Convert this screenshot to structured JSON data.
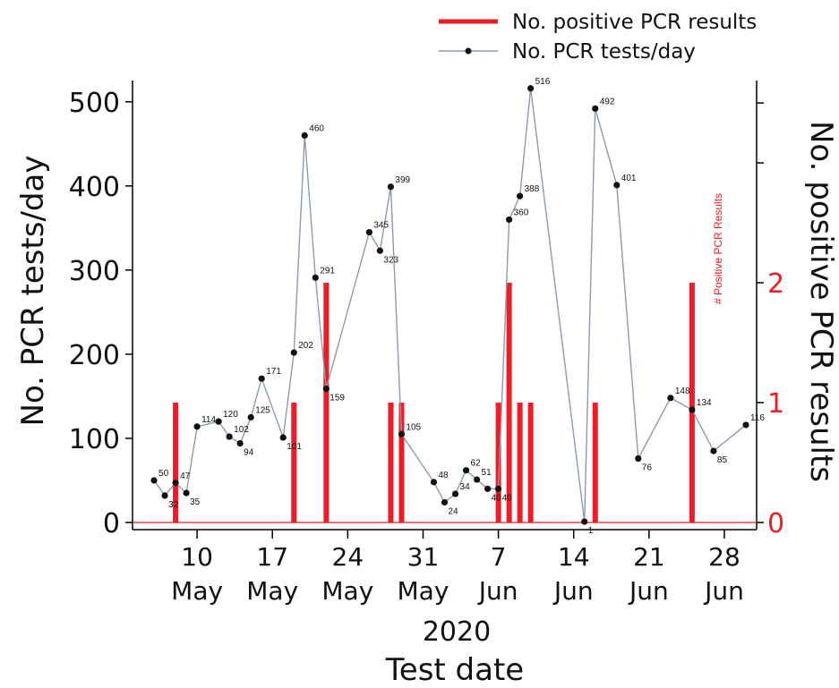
{
  "chart_data": {
    "type": "bar+line",
    "xlabel": "Test date",
    "year_label": "2020",
    "ylabel_left": "No. PCR tests/day",
    "ylabel_right": "No. positive PCR results",
    "right_axis_inner_label": "# Positive PCR Results",
    "legend": {
      "position": "top-right",
      "entries": [
        {
          "label": "No. positive PCR results",
          "style": "bar",
          "color": "#ee1c25"
        },
        {
          "label": "No. PCR tests/day",
          "style": "line-marker",
          "color": "#8c9bad"
        }
      ]
    },
    "x_range": [
      "2020-05-04",
      "2020-07-01"
    ],
    "x_ticks": [
      {
        "date": "2020-05-10",
        "day": "10",
        "month": "May"
      },
      {
        "date": "2020-05-17",
        "day": "17",
        "month": "May"
      },
      {
        "date": "2020-05-24",
        "day": "24",
        "month": "May"
      },
      {
        "date": "2020-05-31",
        "day": "31",
        "month": "May"
      },
      {
        "date": "2020-06-07",
        "day": "7",
        "month": "Jun"
      },
      {
        "date": "2020-06-14",
        "day": "14",
        "month": "Jun"
      },
      {
        "date": "2020-06-21",
        "day": "21",
        "month": "Jun"
      },
      {
        "date": "2020-06-28",
        "day": "28",
        "month": "Jun"
      }
    ],
    "y_left": {
      "range": [
        0,
        520
      ],
      "ticks": [
        0,
        100,
        200,
        300,
        400,
        500
      ]
    },
    "y_right": {
      "range": [
        0,
        3.65
      ],
      "ticks": [
        0,
        1,
        2
      ],
      "color": "#ee1c25"
    },
    "series": [
      {
        "name": "No. PCR tests/day",
        "type": "line",
        "axis": "left",
        "color": "#8c9bad",
        "points": [
          {
            "date": "2020-05-06",
            "value": 50
          },
          {
            "date": "2020-05-07",
            "value": 32
          },
          {
            "date": "2020-05-08",
            "value": 47
          },
          {
            "date": "2020-05-09",
            "value": 35
          },
          {
            "date": "2020-05-10",
            "value": 114
          },
          {
            "date": "2020-05-12",
            "value": 120
          },
          {
            "date": "2020-05-13",
            "value": 102
          },
          {
            "date": "2020-05-14",
            "value": 94
          },
          {
            "date": "2020-05-15",
            "value": 125
          },
          {
            "date": "2020-05-16",
            "value": 171
          },
          {
            "date": "2020-05-18",
            "value": 101
          },
          {
            "date": "2020-05-19",
            "value": 202
          },
          {
            "date": "2020-05-20",
            "value": 460
          },
          {
            "date": "2020-05-21",
            "value": 291
          },
          {
            "date": "2020-05-22",
            "value": 159
          },
          {
            "date": "2020-05-26",
            "value": 345
          },
          {
            "date": "2020-05-27",
            "value": 323
          },
          {
            "date": "2020-05-28",
            "value": 399
          },
          {
            "date": "2020-05-29",
            "value": 105
          },
          {
            "date": "2020-06-01",
            "value": 48
          },
          {
            "date": "2020-06-02",
            "value": 24
          },
          {
            "date": "2020-06-03",
            "value": 34
          },
          {
            "date": "2020-06-04",
            "value": 62
          },
          {
            "date": "2020-06-05",
            "value": 51
          },
          {
            "date": "2020-06-06",
            "value": 40
          },
          {
            "date": "2020-06-07",
            "value": 40
          },
          {
            "date": "2020-06-08",
            "value": 360
          },
          {
            "date": "2020-06-09",
            "value": 388
          },
          {
            "date": "2020-06-10",
            "value": 516
          },
          {
            "date": "2020-06-15",
            "value": 1
          },
          {
            "date": "2020-06-16",
            "value": 492
          },
          {
            "date": "2020-06-18",
            "value": 401
          },
          {
            "date": "2020-06-20",
            "value": 76
          },
          {
            "date": "2020-06-23",
            "value": 148
          },
          {
            "date": "2020-06-25",
            "value": 134
          },
          {
            "date": "2020-06-27",
            "value": 85
          },
          {
            "date": "2020-06-30",
            "value": 116
          }
        ]
      },
      {
        "name": "No. positive PCR results",
        "type": "bar",
        "axis": "right",
        "color": "#ee1c25",
        "points": [
          {
            "date": "2020-05-08",
            "value": 1
          },
          {
            "date": "2020-05-19",
            "value": 1
          },
          {
            "date": "2020-05-22",
            "value": 2
          },
          {
            "date": "2020-05-28",
            "value": 1
          },
          {
            "date": "2020-05-29",
            "value": 1
          },
          {
            "date": "2020-06-07",
            "value": 1
          },
          {
            "date": "2020-06-08",
            "value": 2
          },
          {
            "date": "2020-06-09",
            "value": 1
          },
          {
            "date": "2020-06-10",
            "value": 1
          },
          {
            "date": "2020-06-16",
            "value": 1
          },
          {
            "date": "2020-06-25",
            "value": 2
          }
        ]
      }
    ]
  }
}
